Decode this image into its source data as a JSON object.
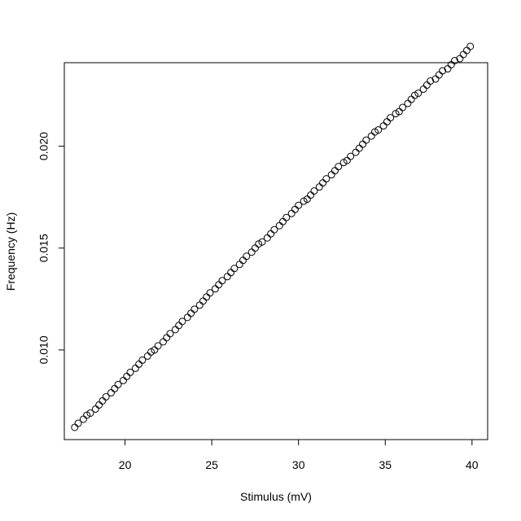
{
  "chart_data": {
    "type": "scatter",
    "xlabel": "Stimulus (mV)",
    "ylabel": "Frequency (Hz)",
    "xlim": [
      16.5,
      40.9
    ],
    "ylim": [
      0.0056,
      0.0241
    ],
    "xticks": [
      20,
      25,
      30,
      35,
      40
    ],
    "xtick_labels": [
      "20",
      "25",
      "30",
      "35",
      "40"
    ],
    "yticks": [
      0.01,
      0.015,
      0.02
    ],
    "ytick_labels": [
      "0.010",
      "0.015",
      "0.020"
    ],
    "grid": false,
    "legend": "none",
    "marker": "open-circle",
    "x": [
      17.1,
      17.3,
      17.6,
      17.8,
      18.0,
      18.3,
      18.5,
      18.7,
      18.9,
      19.2,
      19.4,
      19.6,
      19.9,
      20.1,
      20.3,
      20.6,
      20.8,
      21.0,
      21.3,
      21.5,
      21.7,
      21.9,
      22.2,
      22.4,
      22.6,
      22.9,
      23.1,
      23.3,
      23.6,
      23.8,
      24.0,
      24.3,
      24.5,
      24.7,
      24.9,
      25.2,
      25.4,
      25.6,
      25.9,
      26.1,
      26.3,
      26.6,
      26.8,
      27.0,
      27.3,
      27.5,
      27.7,
      27.9,
      28.2,
      28.4,
      28.6,
      28.9,
      29.1,
      29.3,
      29.6,
      29.8,
      30.0,
      30.3,
      30.5,
      30.7,
      30.9,
      31.2,
      31.4,
      31.6,
      31.9,
      32.1,
      32.3,
      32.6,
      32.8,
      33.0,
      33.3,
      33.5,
      33.7,
      33.9,
      34.2,
      34.4,
      34.6,
      34.9,
      35.1,
      35.3,
      35.6,
      35.8,
      36.0,
      36.3,
      36.5,
      36.7,
      36.9,
      37.2,
      37.4,
      37.6,
      37.9,
      38.1,
      38.3,
      38.6,
      38.8,
      39.0,
      39.3,
      39.5,
      39.7,
      39.9
    ],
    "y": [
      0.0062,
      0.0064,
      0.0066,
      0.0068,
      0.0069,
      0.0071,
      0.0073,
      0.0075,
      0.0077,
      0.0079,
      0.0081,
      0.0083,
      0.0085,
      0.0087,
      0.0089,
      0.0091,
      0.0093,
      0.0095,
      0.0097,
      0.0099,
      0.01,
      0.0102,
      0.0104,
      0.0106,
      0.0108,
      0.011,
      0.0112,
      0.0114,
      0.0116,
      0.0118,
      0.012,
      0.0122,
      0.0124,
      0.0126,
      0.0128,
      0.013,
      0.0132,
      0.0134,
      0.0136,
      0.0138,
      0.014,
      0.0142,
      0.0144,
      0.0146,
      0.0148,
      0.015,
      0.0152,
      0.0153,
      0.0155,
      0.0157,
      0.0159,
      0.0161,
      0.0163,
      0.0165,
      0.0167,
      0.0169,
      0.0171,
      0.0173,
      0.0174,
      0.0176,
      0.0178,
      0.018,
      0.0182,
      0.0184,
      0.0186,
      0.0188,
      0.019,
      0.0192,
      0.0193,
      0.0195,
      0.0197,
      0.0199,
      0.0201,
      0.0203,
      0.0205,
      0.0207,
      0.0208,
      0.021,
      0.0212,
      0.0214,
      0.0216,
      0.0217,
      0.0219,
      0.0221,
      0.0223,
      0.0225,
      0.0226,
      0.0228,
      0.023,
      0.0232,
      0.0233,
      0.0235,
      0.0237,
      0.0238,
      0.024,
      0.0242,
      0.0243,
      0.0245,
      0.0247,
      0.0249
    ]
  }
}
